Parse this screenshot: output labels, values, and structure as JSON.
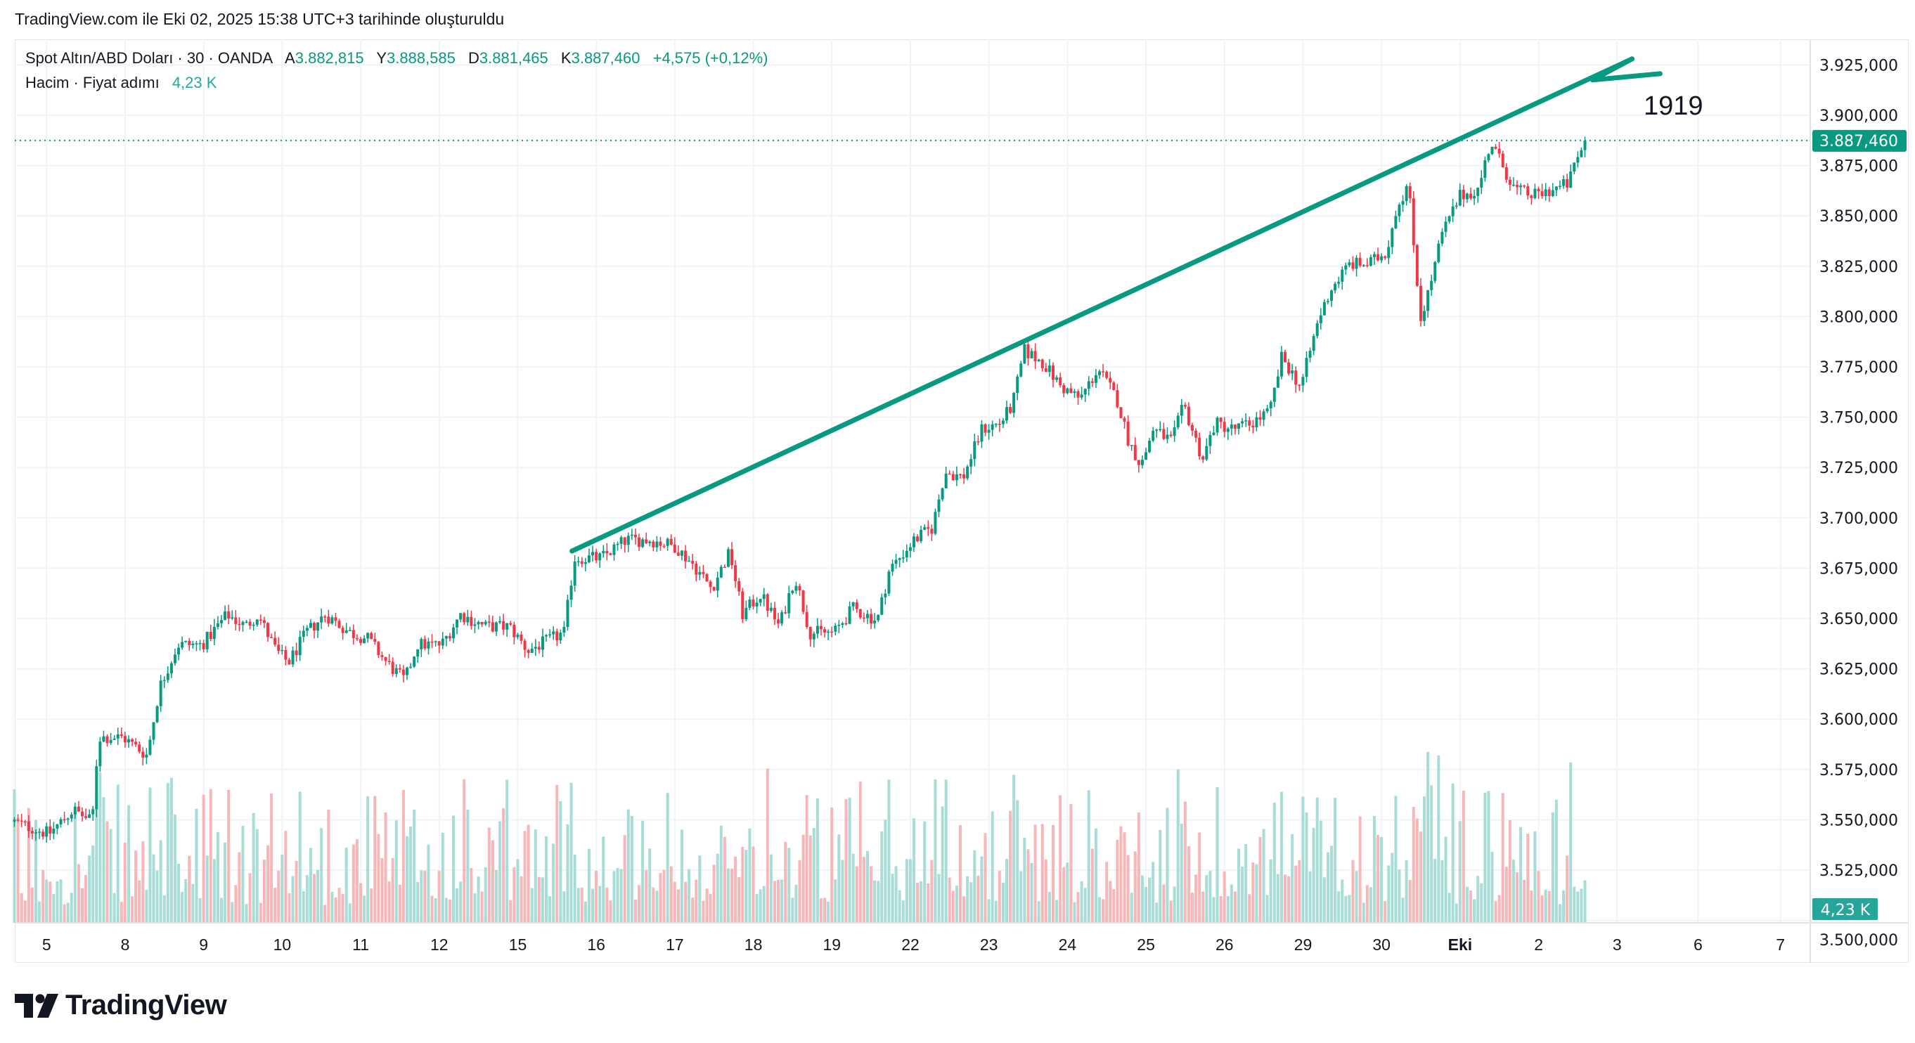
{
  "caption": "TradingView.com ile Eki 02, 2025 15:38 UTC+3 tarihinde oluşturuldu",
  "legend": {
    "symbol": "Spot Altın/ABD Doları · 30 · OANDA",
    "open_label": "A",
    "open": "3.882,815",
    "high_label": "Y",
    "high": "3.888,585",
    "low_label": "D",
    "low": "3.881,465",
    "close_label": "K",
    "close": "3.887,460",
    "change": "+4,575 (+0,12%)",
    "volume_label": "Hacim · Fiyat adımı",
    "volume": "4,23 K"
  },
  "annotation_text": "1919",
  "logo_text": "TradingView",
  "colors": {
    "up": "#089981",
    "down": "#f23645",
    "trendline": "#089981",
    "vol_up": "#a8dcd6",
    "vol_down": "#f7b7b9",
    "badge": "#089981",
    "vol_badge": "#26a69a"
  },
  "chart_data": {
    "type": "candlestick",
    "title": "Spot Altın/ABD Doları · 30 · OANDA",
    "ylim": [
      3500,
      3935
    ],
    "y_ticks": [
      "3.500,000",
      "3.525,000",
      "3.550,000",
      "3.575,000",
      "3.600,000",
      "3.625,000",
      "3.650,000",
      "3.675,000",
      "3.700,000",
      "3.725,000",
      "3.750,000",
      "3.775,000",
      "3.800,000",
      "3.825,000",
      "3.850,000",
      "3.875,000",
      "3.900,000",
      "3.925,000"
    ],
    "y_tick_values": [
      3500,
      3525,
      3550,
      3575,
      3600,
      3625,
      3650,
      3675,
      3700,
      3725,
      3750,
      3775,
      3800,
      3825,
      3850,
      3875,
      3900,
      3925
    ],
    "x_ticks": [
      "5",
      "8",
      "9",
      "10",
      "11",
      "12",
      "15",
      "16",
      "17",
      "18",
      "19",
      "22",
      "23",
      "24",
      "25",
      "26",
      "29",
      "30",
      "Eki",
      "2",
      "3",
      "6",
      "7"
    ],
    "x_tick_index": [
      0,
      1,
      2,
      3,
      4,
      5,
      6,
      7,
      8,
      9,
      10,
      11,
      12,
      13,
      14,
      15,
      16,
      17,
      18,
      19,
      20,
      21.03,
      22.08
    ],
    "last_price": 3887.46,
    "last_price_label": "3.887,460",
    "volume_badge": "4,23 K",
    "path_t": [
      -0.41,
      0.03,
      0.34,
      0.58,
      0.66,
      0.97,
      1.28,
      1.44,
      1.67,
      1.98,
      2.3,
      2.53,
      2.69,
      2.92,
      3.08,
      3.31,
      3.55,
      3.86,
      4.09,
      4.33,
      4.56,
      4.72,
      5.03,
      5.27,
      5.58,
      5.89,
      6.13,
      6.59,
      6.72,
      7.06,
      7.38,
      7.69,
      8.0,
      8.23,
      8.47,
      8.7,
      8.86,
      9.09,
      9.33,
      9.53,
      9.72,
      10.03,
      10.27,
      10.58,
      10.73,
      11.05,
      11.28,
      11.44,
      11.67,
      11.91,
      12.14,
      12.3,
      12.45,
      12.69,
      12.92,
      13.16,
      13.39,
      13.63,
      13.78,
      13.94,
      14.09,
      14.33,
      14.48,
      14.72,
      14.88,
      15.11,
      15.34,
      15.58,
      15.73,
      15.97,
      16.2,
      16.36,
      16.59,
      16.83,
      17.06,
      17.19,
      17.34,
      17.41,
      17.5,
      17.61,
      17.77,
      18.0,
      18.23,
      18.39,
      18.5,
      18.7,
      18.94,
      19.17,
      19.38,
      19.48,
      19.61
    ],
    "path_close": [
      3549,
      3543,
      3555,
      3549,
      3591,
      3591,
      3582,
      3616,
      3637,
      3637,
      3652,
      3646,
      3652,
      3634,
      3628,
      3643,
      3652,
      3643,
      3640,
      3628,
      3619,
      3637,
      3637,
      3652,
      3646,
      3646,
      3634,
      3643,
      3680,
      3680,
      3689,
      3689,
      3686,
      3677,
      3665,
      3683,
      3652,
      3662,
      3646,
      3671,
      3643,
      3643,
      3655,
      3649,
      3674,
      3689,
      3695,
      3723,
      3720,
      3744,
      3747,
      3756,
      3783,
      3777,
      3765,
      3759,
      3774,
      3759,
      3738,
      3726,
      3744,
      3738,
      3756,
      3729,
      3747,
      3744,
      3747,
      3753,
      3780,
      3765,
      3799,
      3814,
      3826,
      3826,
      3832,
      3854,
      3866,
      3835,
      3799,
      3814,
      3841,
      3860,
      3863,
      3887,
      3878,
      3863,
      3860,
      3863,
      3866,
      3878,
      3887
    ],
    "trendline": {
      "start": [
        6.69,
        3683.5
      ],
      "end": [
        20.19,
        3928
      ]
    }
  }
}
